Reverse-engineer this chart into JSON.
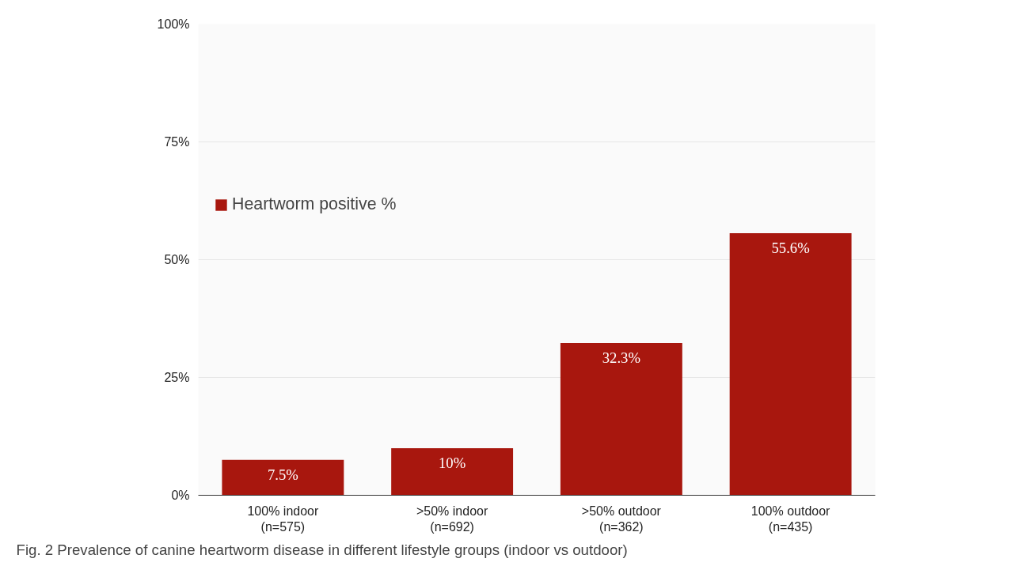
{
  "chart_data": {
    "type": "bar",
    "categories": [
      "100% indoor\n(n=575)",
      ">50% indoor\n(n=692)",
      ">50% outdoor\n(n=362)",
      "100% outdoor\n(n=435)"
    ],
    "series": [
      {
        "name": "Heartworm positive %",
        "color": "#a8170e",
        "values": [
          7.5,
          10,
          32.3,
          55.6
        ],
        "value_labels": [
          "7.5%",
          "10%",
          "32.3%",
          "55.6%"
        ]
      }
    ],
    "ylim": [
      0,
      100
    ],
    "yticks": [
      {
        "value": 0,
        "label": "0%"
      },
      {
        "value": 25,
        "label": "25%"
      },
      {
        "value": 50,
        "label": "50%"
      },
      {
        "value": 75,
        "label": "75%"
      },
      {
        "value": 100,
        "label": "100%"
      }
    ],
    "grid": "y",
    "legend": "top left",
    "annotations": [
      "Fig. 2 Prevalence of canine heartworm disease in different lifestyle groups (indoor vs outdoor)"
    ]
  }
}
